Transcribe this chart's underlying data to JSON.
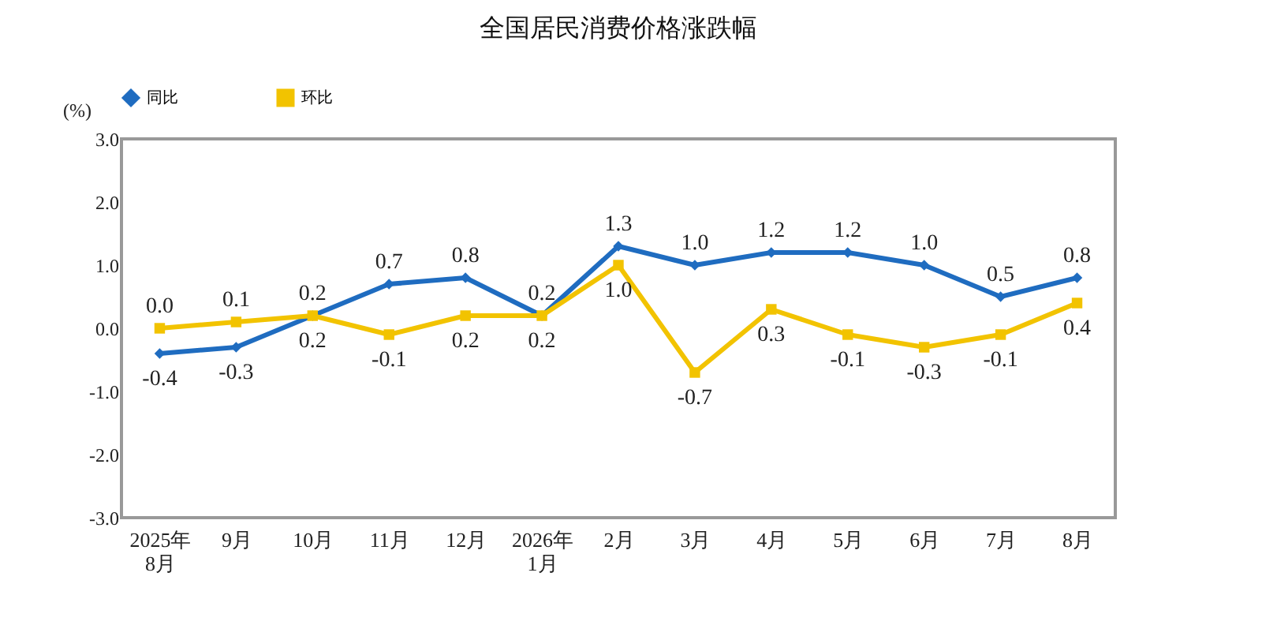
{
  "chart_data": {
    "type": "line",
    "title": "全国居民消费价格涨跌幅",
    "ylabel": "(%)",
    "categories": [
      "2025年\n8月",
      "9月",
      "10月",
      "11月",
      "12月",
      "2026年\n1月",
      "2月",
      "3月",
      "4月",
      "5月",
      "6月",
      "7月",
      "8月"
    ],
    "series": [
      {
        "name": "同比",
        "color": "#1f6cc0",
        "marker": "diamond",
        "values": [
          -0.4,
          -0.3,
          0.2,
          0.7,
          0.8,
          0.2,
          1.3,
          1.0,
          1.2,
          1.2,
          1.0,
          0.5,
          0.8
        ],
        "value_labels": [
          "-0.4",
          "-0.3",
          "0.2",
          "0.7",
          "0.8",
          "0.2",
          "1.3",
          "1.0",
          "1.2",
          "1.2",
          "1.0",
          "0.5",
          "0.8"
        ]
      },
      {
        "name": "环比",
        "color": "#f2c300",
        "marker": "square",
        "values": [
          0.0,
          0.1,
          0.2,
          -0.1,
          0.2,
          0.2,
          1.0,
          -0.7,
          0.3,
          -0.1,
          -0.3,
          -0.1,
          0.4
        ],
        "value_labels": [
          "0.0",
          "0.1",
          "0.2",
          "-0.1",
          "0.2",
          "0.2",
          "1.0",
          "-0.7",
          "0.3",
          "-0.1",
          "-0.3",
          "-0.1",
          "0.4"
        ]
      }
    ],
    "ylim": [
      -3,
      3
    ],
    "yticks": [
      {
        "value": -3,
        "label": "-3.0"
      },
      {
        "value": -2,
        "label": "-2.0"
      },
      {
        "value": -1,
        "label": "-1.0"
      },
      {
        "value": 0,
        "label": "0.0"
      },
      {
        "value": 1,
        "label": "1.0"
      },
      {
        "value": 2,
        "label": "2.0"
      },
      {
        "value": 3,
        "label": "3.0"
      }
    ],
    "legend": "top",
    "grid": false,
    "line_style": "solid"
  }
}
